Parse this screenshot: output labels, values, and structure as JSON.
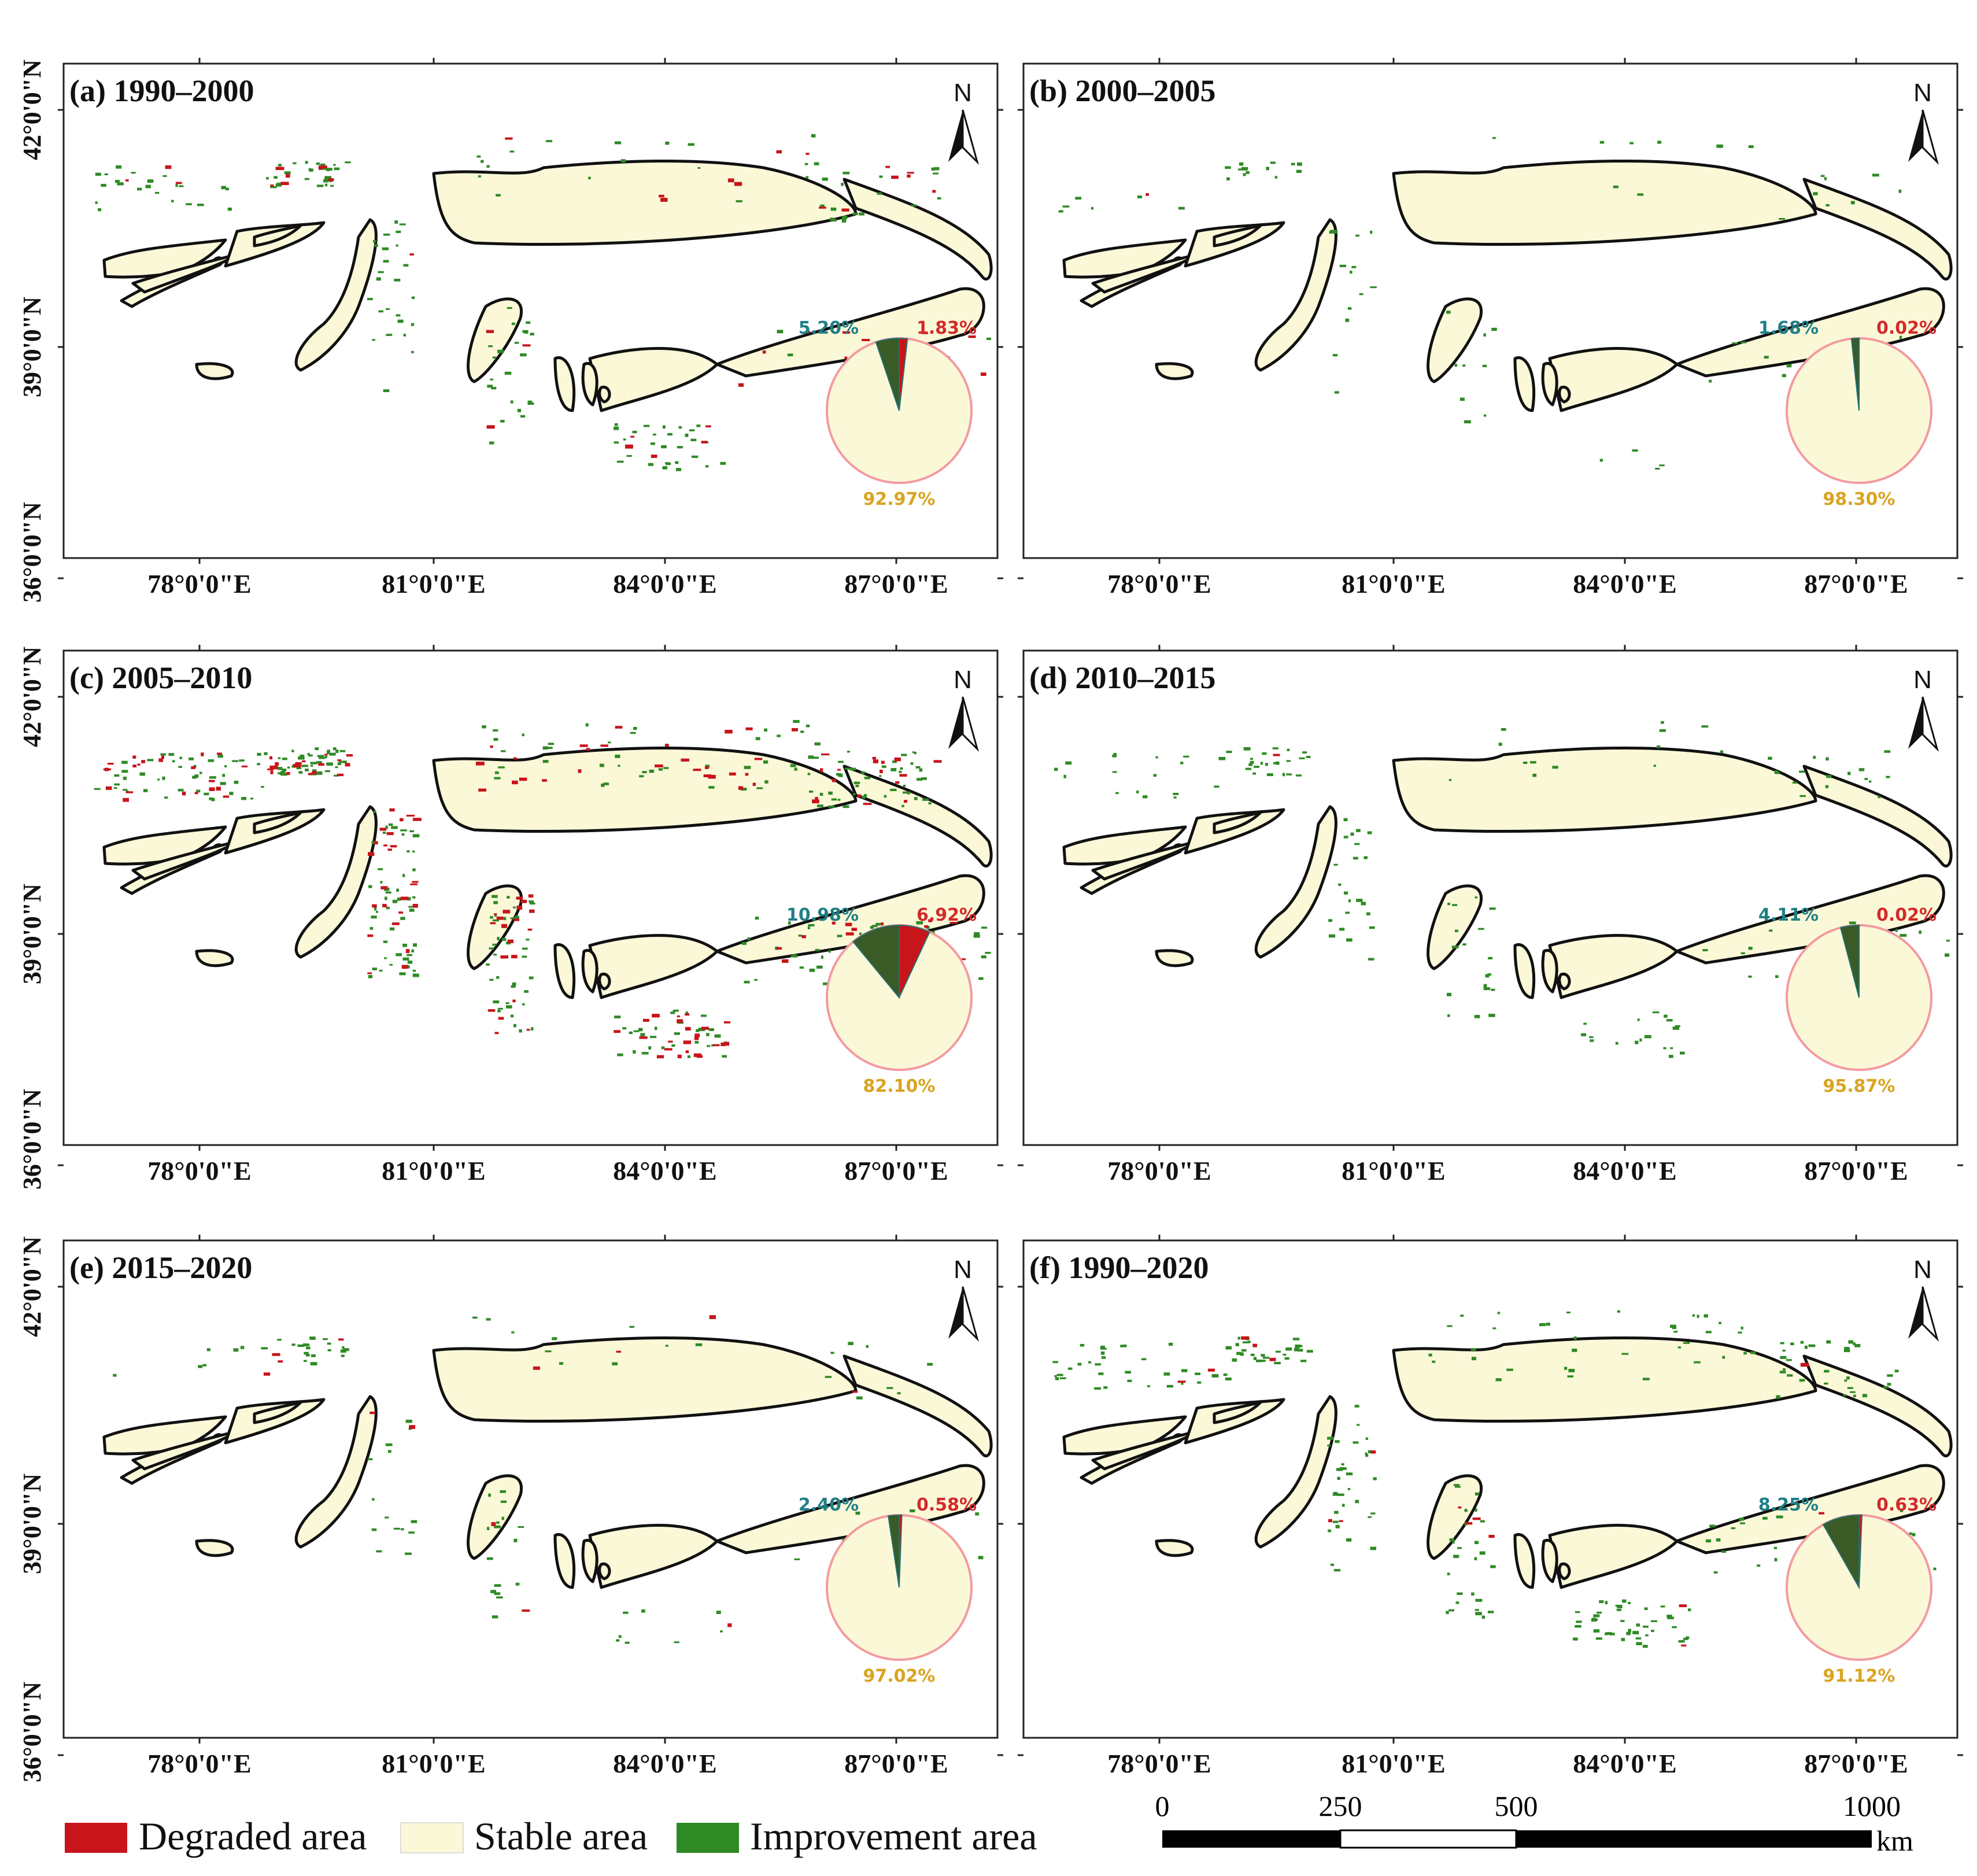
{
  "colors": {
    "degraded": "#c8141b",
    "stable": "#fbf8d8",
    "improvement": "#2f8a25",
    "improvement_pie": "#3a5a26",
    "teal_label": "#207f86",
    "gold_label": "#d9a420",
    "red_label": "#d22b2b",
    "pie_ring": "#f39aa0"
  },
  "axes": {
    "lon_labels": [
      "78°0'0\"E",
      "81°0'0\"E",
      "84°0'0\"E",
      "87°0'0\"E"
    ],
    "lat_labels": [
      "42°0'0\"N",
      "39°0'0\"N",
      "36°0'0\"N"
    ]
  },
  "north_arrow_label": "N",
  "panels": [
    {
      "title": "(a) 1990–2000",
      "improvement": "5.20%",
      "degraded": "1.83%",
      "stable": "92.97%",
      "improvement_value": 5.2,
      "degraded_value": 1.83
    },
    {
      "title": "(b) 2000–2005",
      "improvement": "1.68%",
      "degraded": "0.02%",
      "stable": "98.30%",
      "improvement_value": 1.68,
      "degraded_value": 0.02
    },
    {
      "title": "(c) 2005–2010",
      "improvement": "10.98%",
      "degraded": "6.92%",
      "stable": "82.10%",
      "improvement_value": 10.98,
      "degraded_value": 6.92
    },
    {
      "title": "(d) 2010–2015",
      "improvement": "4.11%",
      "degraded": "0.02%",
      "stable": "95.87%",
      "improvement_value": 4.11,
      "degraded_value": 0.02
    },
    {
      "title": "(e) 2015–2020",
      "improvement": "2.40%",
      "degraded": "0.58%",
      "stable": "97.02%",
      "improvement_value": 2.4,
      "degraded_value": 0.58
    },
    {
      "title": "(f) 1990–2020",
      "improvement": "8.25%",
      "degraded": "0.63%",
      "stable": "91.12%",
      "improvement_value": 8.25,
      "degraded_value": 0.63
    }
  ],
  "legend": {
    "degraded": "Degraded area",
    "stable": "Stable area",
    "improvement": "Improvement area"
  },
  "scale_bar": {
    "labels": [
      "0",
      "250",
      "500",
      "1000"
    ],
    "unit": "km"
  }
}
